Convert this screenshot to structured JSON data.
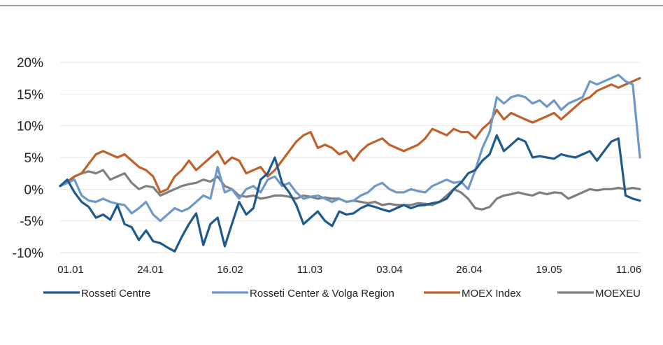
{
  "chart_data": {
    "type": "line",
    "title": "",
    "xlabel": "",
    "ylabel": "",
    "ylim": [
      -10,
      20
    ],
    "y_ticks": [
      "20%",
      "15%",
      "10%",
      "5%",
      "0%",
      "-5%",
      "-10%"
    ],
    "x_tick_labels": [
      "01.01",
      "24.01",
      "16.02",
      "11.03",
      "03.04",
      "26.04",
      "19.05",
      "11.06"
    ],
    "x": [
      0,
      2,
      4,
      6,
      8,
      10,
      12,
      14,
      16,
      18,
      20,
      22,
      24,
      26,
      28,
      30,
      32,
      34,
      36,
      38,
      40,
      42,
      44,
      46,
      48,
      50,
      52,
      54,
      56,
      58,
      60,
      62,
      64,
      66,
      68,
      70,
      72,
      74,
      76,
      78,
      80,
      82,
      84,
      86,
      88,
      90,
      92,
      94,
      96,
      98,
      100,
      102,
      104,
      106,
      108,
      110,
      112,
      114,
      116,
      118,
      120,
      122,
      124,
      126,
      128,
      130,
      132,
      134,
      136,
      138,
      140,
      142,
      144,
      146,
      148,
      150,
      152,
      154,
      156,
      158,
      160,
      162
    ],
    "grid": "horizontal",
    "legend_position": "bottom",
    "series": [
      {
        "name": "Rosseti Centre",
        "color": "#1f5a8c",
        "values": [
          0.5,
          1.5,
          -0.5,
          -2.0,
          -2.8,
          -4.5,
          -4.0,
          -4.8,
          -2.5,
          -5.5,
          -6.0,
          -8.0,
          -6.5,
          -8.2,
          -8.5,
          -9.2,
          -9.8,
          -7.5,
          -5.5,
          -3.8,
          -8.8,
          -5.5,
          -4.5,
          -9.0,
          -5.5,
          -2.0,
          -4.0,
          -3.0,
          1.5,
          2.5,
          5.0,
          1.0,
          -0.5,
          -2.5,
          -5.5,
          -4.5,
          -3.5,
          -5.0,
          -5.8,
          -3.5,
          -4.0,
          -3.8,
          -3.0,
          -2.5,
          -2.8,
          -3.2,
          -3.5,
          -3.0,
          -2.5,
          -3.0,
          -2.6,
          -2.5,
          -2.2,
          -2.0,
          -1.5,
          0.0,
          1.0,
          2.5,
          3.0,
          4.5,
          5.5,
          8.5,
          6.0,
          7.0,
          8.0,
          7.5,
          5.0,
          5.2,
          5.0,
          4.8,
          5.5,
          5.2,
          5.0,
          5.5,
          6.0,
          4.5,
          6.0,
          7.5,
          8.0,
          -1.0,
          -1.5,
          -1.8
        ]
      },
      {
        "name": "Rosseti Center & Volga Region",
        "color": "#6d98c9",
        "values": [
          0.5,
          1.0,
          1.5,
          -1.0,
          -1.8,
          -2.0,
          -1.5,
          -2.0,
          -2.3,
          -2.5,
          -3.8,
          -3.0,
          -2.0,
          -4.0,
          -5.0,
          -4.0,
          -3.0,
          -3.5,
          -3.0,
          -2.0,
          -1.0,
          -1.5,
          3.5,
          -0.5,
          0.0,
          -1.5,
          0.0,
          0.5,
          -0.5,
          1.5,
          2.0,
          0.5,
          1.0,
          -0.5,
          -1.5,
          -1.2,
          -1.0,
          -1.5,
          -2.0,
          -1.5,
          -2.0,
          -1.8,
          -1.0,
          -0.5,
          0.5,
          1.0,
          0.0,
          -0.5,
          -0.5,
          0.0,
          -0.3,
          -0.5,
          0.5,
          1.0,
          1.5,
          1.0,
          1.2,
          0.0,
          3.0,
          6.5,
          9.0,
          14.5,
          13.5,
          14.5,
          14.8,
          14.5,
          13.5,
          14.0,
          13.0,
          14.0,
          12.5,
          13.5,
          14.0,
          14.5,
          17.0,
          16.5,
          17.0,
          17.5,
          18.0,
          17.0,
          16.5,
          5.0
        ]
      },
      {
        "name": "MOEX Index",
        "color": "#c0612b",
        "values": [
          0.5,
          1.2,
          2.0,
          2.5,
          4.0,
          5.5,
          6.0,
          5.5,
          5.0,
          5.5,
          4.5,
          3.5,
          3.0,
          2.0,
          -0.5,
          0.0,
          2.0,
          3.0,
          4.5,
          3.0,
          4.0,
          5.0,
          6.0,
          4.0,
          5.0,
          4.5,
          2.5,
          3.0,
          3.5,
          2.0,
          3.0,
          4.5,
          6.0,
          7.5,
          8.5,
          9.0,
          6.5,
          7.0,
          6.5,
          5.5,
          6.0,
          4.5,
          6.0,
          7.0,
          7.5,
          8.0,
          7.0,
          6.5,
          6.0,
          6.5,
          7.0,
          8.0,
          9.5,
          9.0,
          8.5,
          9.5,
          9.0,
          9.0,
          8.0,
          9.5,
          10.5,
          12.5,
          11.0,
          12.0,
          11.5,
          11.0,
          10.5,
          11.0,
          11.5,
          12.0,
          11.0,
          12.0,
          13.0,
          14.0,
          14.5,
          15.5,
          16.0,
          16.5,
          16.0,
          16.5,
          17.0,
          17.5
        ]
      },
      {
        "name": "MOEXEU",
        "color": "#7f7f7f",
        "values": [
          0.5,
          1.0,
          2.0,
          2.5,
          2.8,
          2.5,
          3.0,
          1.5,
          2.0,
          2.5,
          1.0,
          0.0,
          0.5,
          0.3,
          -1.0,
          -0.5,
          0.0,
          0.5,
          0.8,
          1.0,
          1.5,
          1.2,
          2.0,
          0.5,
          0.0,
          -1.0,
          -1.2,
          -1.0,
          -1.5,
          -1.3,
          -1.0,
          -1.0,
          -1.2,
          -1.5,
          -1.0,
          -1.2,
          -1.5,
          -1.3,
          -1.5,
          -1.5,
          -2.0,
          -1.8,
          -2.0,
          -2.2,
          -2.0,
          -2.5,
          -2.3,
          -2.5,
          -2.5,
          -2.5,
          -2.2,
          -2.3,
          -2.5,
          -2.0,
          -1.0,
          0.0,
          -0.5,
          -1.5,
          -3.0,
          -3.2,
          -2.8,
          -1.5,
          -1.0,
          -0.8,
          -0.5,
          -0.8,
          -1.0,
          -0.5,
          -0.8,
          -0.5,
          -0.6,
          -1.5,
          -1.0,
          -0.5,
          0.0,
          -0.2,
          0.0,
          0.0,
          0.2,
          0.0,
          0.2,
          0.0
        ]
      }
    ]
  }
}
